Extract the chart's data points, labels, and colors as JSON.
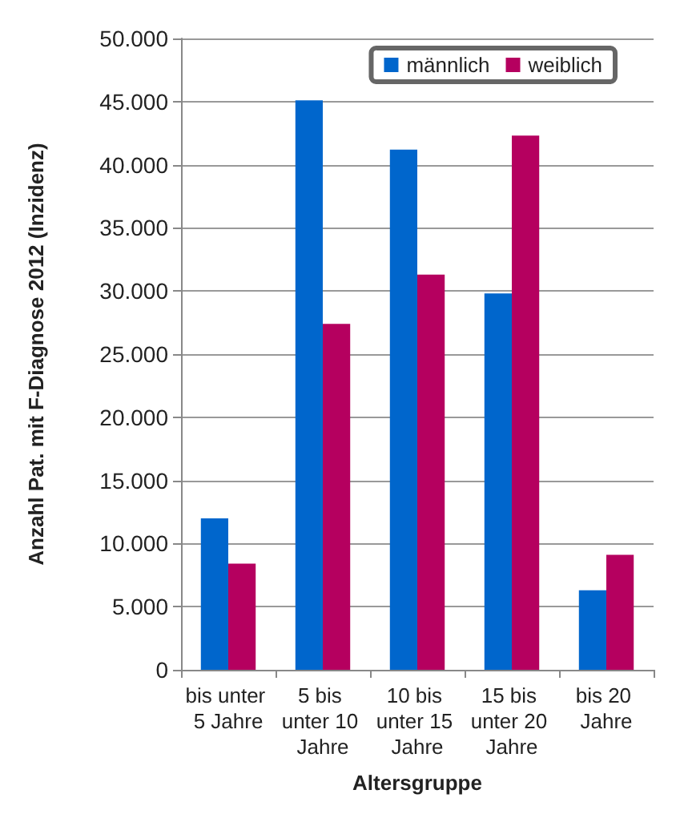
{
  "chart_data": {
    "type": "bar",
    "xlabel": "Altersgruppe",
    "ylabel": "Anzahl Pat. mit F-Diagnose 2012 (Inzidenz)",
    "categories": [
      "bis unter 5 Jahre",
      "5 bis unter 10 Jahre",
      "10 bis unter 15 Jahre",
      "15 bis unter 20 Jahre",
      "bis 20 Jahre"
    ],
    "series": [
      {
        "name": "männlich",
        "color": "#0066cc",
        "values": [
          12000,
          45100,
          41200,
          29800,
          6300
        ]
      },
      {
        "name": "weiblich",
        "color": "#b5005f",
        "values": [
          8400,
          27400,
          31300,
          42300,
          9100
        ]
      }
    ],
    "ylim": [
      0,
      50000
    ],
    "yticks": [
      {
        "value": 0,
        "label": "0"
      },
      {
        "value": 5000,
        "label": "5.000"
      },
      {
        "value": 10000,
        "label": "10.000"
      },
      {
        "value": 15000,
        "label": "15.000"
      },
      {
        "value": 20000,
        "label": "20.000"
      },
      {
        "value": 25000,
        "label": "25.000"
      },
      {
        "value": 30000,
        "label": "30.000"
      },
      {
        "value": 35000,
        "label": "35.000"
      },
      {
        "value": 40000,
        "label": "40.000"
      },
      {
        "value": 45000,
        "label": "45.000"
      },
      {
        "value": 50000,
        "label": "50.000"
      }
    ],
    "grid": "y",
    "legend": "top right"
  }
}
